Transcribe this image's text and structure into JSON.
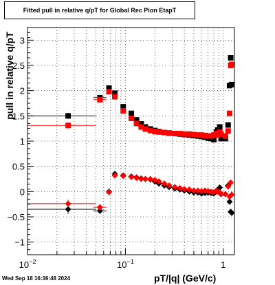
{
  "title": "Fitted pull in relative q/pT for Global Rec Pion EtapT",
  "timestamp": "Wed Sep 18 16:36:48 2024",
  "chart_data": {
    "type": "scatter",
    "title": "Fitted pull in relative q/pT for Global Rec Pion EtapT",
    "xlabel": "pT/|q| (GeV/c)",
    "ylabel": "pull in relative q/pT",
    "xscale": "log",
    "xlim": [
      0.01,
      1.3
    ],
    "ylim": [
      -1.25,
      3.25
    ],
    "grid": true,
    "x_ticks": [
      {
        "value": 0.01,
        "base": "10",
        "exp": "−2"
      },
      {
        "value": 0.1,
        "base": "10",
        "exp": "−1"
      },
      {
        "value": 1,
        "base": "1",
        "exp": ""
      }
    ],
    "y_ticks": [
      -1,
      -0.5,
      0,
      0.5,
      1,
      1.5,
      2,
      2.5,
      3
    ],
    "y_tick_labels": [
      "−1",
      "−0.5",
      "0",
      "0.5",
      "1",
      "1.5",
      "2",
      "2.5",
      "3"
    ],
    "series": [
      {
        "marker": "square",
        "color": "#000000",
        "points": [
          {
            "x": 0.026,
            "y": 1.5,
            "xerr": [
              0.016,
              0.024
            ],
            "yerr": 0.06
          },
          {
            "x": 0.055,
            "y": 1.86,
            "xerr": [
              0.008,
              0.009
            ],
            "yerr": 0.03
          },
          {
            "x": 0.068,
            "y": 2.05
          },
          {
            "x": 0.078,
            "y": 1.95
          },
          {
            "x": 0.095,
            "y": 1.68
          },
          {
            "x": 0.115,
            "y": 1.55
          },
          {
            "x": 0.13,
            "y": 1.42
          },
          {
            "x": 0.145,
            "y": 1.34
          },
          {
            "x": 0.16,
            "y": 1.28
          },
          {
            "x": 0.18,
            "y": 1.24
          },
          {
            "x": 0.2,
            "y": 1.21
          },
          {
            "x": 0.22,
            "y": 1.19
          },
          {
            "x": 0.25,
            "y": 1.17
          },
          {
            "x": 0.28,
            "y": 1.16
          },
          {
            "x": 0.32,
            "y": 1.15
          },
          {
            "x": 0.36,
            "y": 1.14
          },
          {
            "x": 0.4,
            "y": 1.13
          },
          {
            "x": 0.45,
            "y": 1.12
          },
          {
            "x": 0.5,
            "y": 1.11
          },
          {
            "x": 0.55,
            "y": 1.1
          },
          {
            "x": 0.6,
            "y": 1.09
          },
          {
            "x": 0.65,
            "y": 1.08
          },
          {
            "x": 0.7,
            "y": 1.06
          },
          {
            "x": 0.75,
            "y": 1.05
          },
          {
            "x": 0.8,
            "y": 1.03
          },
          {
            "x": 0.85,
            "y": 1.18
          },
          {
            "x": 0.88,
            "y": 1.22
          },
          {
            "x": 0.92,
            "y": 1.28
          },
          {
            "x": 0.95,
            "y": 1.05
          },
          {
            "x": 1.05,
            "y": 1.05
          },
          {
            "x": 1.12,
            "y": 1.32
          },
          {
            "x": 1.16,
            "y": 2.1
          },
          {
            "x": 1.19,
            "y": 2.65
          },
          {
            "x": 1.22,
            "y": 2.12
          }
        ]
      },
      {
        "marker": "square",
        "color": "#ff0000",
        "points": [
          {
            "x": 0.026,
            "y": 1.31,
            "xerr": [
              0.016,
              0.024
            ],
            "yerr": 0.06
          },
          {
            "x": 0.055,
            "y": 1.82,
            "xerr": [
              0.008,
              0.009
            ],
            "yerr": 0.03
          },
          {
            "x": 0.068,
            "y": 1.98
          },
          {
            "x": 0.078,
            "y": 1.88
          },
          {
            "x": 0.095,
            "y": 1.6
          },
          {
            "x": 0.115,
            "y": 1.45
          },
          {
            "x": 0.13,
            "y": 1.35
          },
          {
            "x": 0.145,
            "y": 1.28
          },
          {
            "x": 0.16,
            "y": 1.24
          },
          {
            "x": 0.18,
            "y": 1.21
          },
          {
            "x": 0.2,
            "y": 1.19
          },
          {
            "x": 0.22,
            "y": 1.18
          },
          {
            "x": 0.25,
            "y": 1.17
          },
          {
            "x": 0.28,
            "y": 1.16
          },
          {
            "x": 0.32,
            "y": 1.15
          },
          {
            "x": 0.36,
            "y": 1.15
          },
          {
            "x": 0.4,
            "y": 1.14
          },
          {
            "x": 0.45,
            "y": 1.14
          },
          {
            "x": 0.5,
            "y": 1.13
          },
          {
            "x": 0.55,
            "y": 1.12
          },
          {
            "x": 0.6,
            "y": 1.12
          },
          {
            "x": 0.65,
            "y": 1.11
          },
          {
            "x": 0.7,
            "y": 1.1
          },
          {
            "x": 0.75,
            "y": 1.1
          },
          {
            "x": 0.8,
            "y": 1.12
          },
          {
            "x": 0.85,
            "y": 1.15
          },
          {
            "x": 0.88,
            "y": 1.12
          },
          {
            "x": 0.92,
            "y": 1.18
          },
          {
            "x": 0.95,
            "y": 1.14
          },
          {
            "x": 1.05,
            "y": 1.1
          },
          {
            "x": 1.12,
            "y": 1.2
          },
          {
            "x": 1.16,
            "y": 1.55
          },
          {
            "x": 1.19,
            "y": 2.5
          },
          {
            "x": 1.22,
            "y": 2.52
          }
        ]
      },
      {
        "marker": "diamond",
        "color": "#000000",
        "points": [
          {
            "x": 0.026,
            "y": -0.35,
            "xerr": [
              0.016,
              0.024
            ],
            "yerr": 0.09
          },
          {
            "x": 0.055,
            "y": -0.38,
            "xerr": [
              0.008,
              0.009
            ],
            "yerr": 0.04
          },
          {
            "x": 0.068,
            "y": 0.0
          },
          {
            "x": 0.078,
            "y": 0.35
          },
          {
            "x": 0.095,
            "y": 0.32
          },
          {
            "x": 0.115,
            "y": 0.3
          },
          {
            "x": 0.13,
            "y": 0.28
          },
          {
            "x": 0.145,
            "y": 0.26
          },
          {
            "x": 0.16,
            "y": 0.25
          },
          {
            "x": 0.18,
            "y": 0.24
          },
          {
            "x": 0.2,
            "y": 0.2
          },
          {
            "x": 0.22,
            "y": 0.16
          },
          {
            "x": 0.25,
            "y": 0.12
          },
          {
            "x": 0.28,
            "y": 0.09
          },
          {
            "x": 0.32,
            "y": 0.06
          },
          {
            "x": 0.36,
            "y": 0.04
          },
          {
            "x": 0.4,
            "y": 0.02
          },
          {
            "x": 0.45,
            "y": 0.0
          },
          {
            "x": 0.5,
            "y": -0.02
          },
          {
            "x": 0.55,
            "y": -0.02
          },
          {
            "x": 0.6,
            "y": -0.04
          },
          {
            "x": 0.65,
            "y": -0.03
          },
          {
            "x": 0.7,
            "y": -0.02
          },
          {
            "x": 0.75,
            "y": -0.03
          },
          {
            "x": 0.8,
            "y": -0.04
          },
          {
            "x": 0.85,
            "y": 0.0
          },
          {
            "x": 0.88,
            "y": 0.04
          },
          {
            "x": 0.92,
            "y": 0.08
          },
          {
            "x": 0.95,
            "y": -0.05
          },
          {
            "x": 1.05,
            "y": -0.05
          },
          {
            "x": 1.12,
            "y": 0.12
          },
          {
            "x": 1.16,
            "y": -0.2
          },
          {
            "x": 1.19,
            "y": -0.4
          },
          {
            "x": 1.22,
            "y": -0.42
          }
        ]
      },
      {
        "marker": "diamond",
        "color": "#ff0000",
        "points": [
          {
            "x": 0.026,
            "y": -0.24,
            "xerr": [
              0.016,
              0.024
            ],
            "yerr": 0.08
          },
          {
            "x": 0.055,
            "y": -0.31,
            "xerr": [
              0.008,
              0.009
            ],
            "yerr": 0.04
          },
          {
            "x": 0.068,
            "y": -0.01
          },
          {
            "x": 0.078,
            "y": 0.32
          },
          {
            "x": 0.095,
            "y": 0.31
          },
          {
            "x": 0.115,
            "y": 0.29
          },
          {
            "x": 0.13,
            "y": 0.27
          },
          {
            "x": 0.145,
            "y": 0.25
          },
          {
            "x": 0.16,
            "y": 0.25
          },
          {
            "x": 0.18,
            "y": 0.25
          },
          {
            "x": 0.2,
            "y": 0.23
          },
          {
            "x": 0.22,
            "y": 0.2
          },
          {
            "x": 0.25,
            "y": 0.16
          },
          {
            "x": 0.28,
            "y": 0.12
          },
          {
            "x": 0.32,
            "y": 0.09
          },
          {
            "x": 0.36,
            "y": 0.07
          },
          {
            "x": 0.4,
            "y": 0.05
          },
          {
            "x": 0.45,
            "y": 0.04
          },
          {
            "x": 0.5,
            "y": 0.02
          },
          {
            "x": 0.55,
            "y": 0.02
          },
          {
            "x": 0.6,
            "y": 0.01
          },
          {
            "x": 0.65,
            "y": 0.02
          },
          {
            "x": 0.7,
            "y": 0.01
          },
          {
            "x": 0.75,
            "y": 0.0
          },
          {
            "x": 0.8,
            "y": -0.01
          },
          {
            "x": 0.85,
            "y": 0.02
          },
          {
            "x": 0.88,
            "y": 0.0
          },
          {
            "x": 0.92,
            "y": -0.02
          },
          {
            "x": 0.95,
            "y": -0.04
          },
          {
            "x": 1.05,
            "y": -0.05
          },
          {
            "x": 1.12,
            "y": 0.1
          },
          {
            "x": 1.16,
            "y": -0.1
          },
          {
            "x": 1.19,
            "y": 0.18
          },
          {
            "x": 1.22,
            "y": -0.06
          }
        ]
      }
    ]
  }
}
